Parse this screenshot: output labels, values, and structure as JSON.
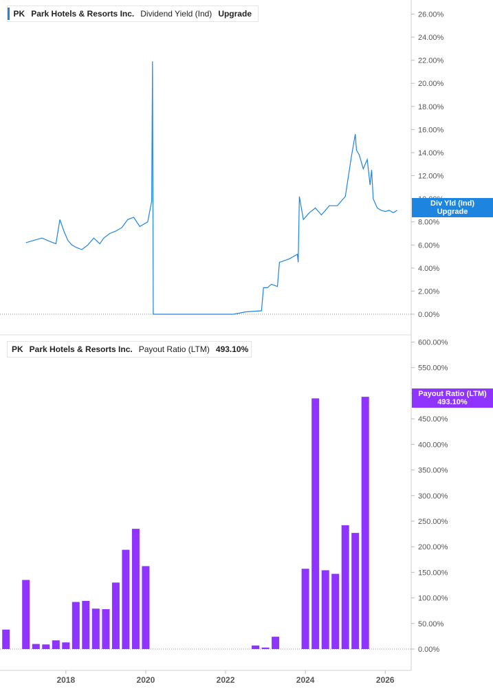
{
  "colors": {
    "yield": "#1d84e0",
    "payout": "#8f33ff",
    "grid": "#d9d9d9",
    "text": "#555555"
  },
  "top_legend": {
    "ticker": "PK",
    "company": "Park Hotels & Resorts Inc.",
    "metric": "Dividend Yield (Ind)",
    "value": "Upgrade"
  },
  "top_tag": {
    "line1": "Div Yld (Ind)",
    "line2": "Upgrade"
  },
  "bottom_legend": {
    "ticker": "PK",
    "company": "Park Hotels & Resorts Inc.",
    "metric": "Payout Ratio (LTM)",
    "value": "493.10%"
  },
  "bottom_tag": {
    "line1": "Payout Ratio (LTM)",
    "line2": "493.10%"
  },
  "chart_data": [
    {
      "type": "line",
      "series_label": "Dividend Yield (Ind)",
      "y_unit": "%",
      "ylim": [
        0,
        27
      ],
      "yticks": [
        "0.00%",
        "2.00%",
        "4.00%",
        "6.00%",
        "8.00%",
        "10.00%",
        "12.00%",
        "14.00%",
        "16.00%",
        "18.00%",
        "20.00%",
        "22.00%",
        "24.00%",
        "26.00%"
      ],
      "x": [
        2017.0,
        2017.2,
        2017.4,
        2017.6,
        2017.75,
        2017.85,
        2017.95,
        2018.05,
        2018.15,
        2018.25,
        2018.4,
        2018.55,
        2018.7,
        2018.85,
        2018.95,
        2019.1,
        2019.25,
        2019.4,
        2019.55,
        2019.7,
        2019.85,
        2019.95,
        2020.05,
        2020.15,
        2020.17,
        2020.19,
        2020.2,
        2021.0,
        2022.0,
        2022.2,
        2022.5,
        2022.9,
        2022.95,
        2023.05,
        2023.15,
        2023.3,
        2023.35,
        2023.6,
        2023.8,
        2023.82,
        2023.85,
        2023.95,
        2024.1,
        2024.25,
        2024.4,
        2024.6,
        2024.8,
        2025.0,
        2025.15,
        2025.25,
        2025.28,
        2025.35,
        2025.45,
        2025.55,
        2025.62,
        2025.66,
        2025.7,
        2025.8,
        2025.9,
        2026.0,
        2026.1,
        2026.2,
        2026.3
      ],
      "y": [
        6.2,
        6.4,
        6.6,
        6.3,
        6.1,
        8.2,
        7.2,
        6.4,
        6.0,
        5.8,
        5.6,
        6.0,
        6.6,
        6.1,
        6.6,
        7.0,
        7.2,
        7.5,
        8.2,
        8.4,
        7.6,
        7.8,
        8.0,
        9.8,
        21.9,
        0,
        0,
        0,
        0,
        0,
        0.2,
        0.3,
        2.3,
        2.3,
        2.6,
        2.4,
        4.5,
        4.8,
        5.2,
        4.5,
        10.2,
        8.2,
        8.8,
        9.2,
        8.6,
        9.4,
        9.4,
        10.2,
        13.6,
        15.6,
        14.2,
        13.8,
        12.6,
        13.4,
        11.2,
        12.5,
        10.0,
        9.2,
        9.0,
        8.9,
        9.0,
        8.8,
        9.0
      ]
    },
    {
      "type": "bar",
      "series_label": "Payout Ratio (LTM)",
      "y_unit": "%",
      "ylim": [
        0,
        600
      ],
      "yticks": [
        "0.00%",
        "50.00%",
        "100.00%",
        "150.00%",
        "200.00%",
        "250.00%",
        "300.00%",
        "350.00%",
        "400.00%",
        "450.00%",
        "500.00%",
        "550.00%",
        "600.00%"
      ],
      "x_ticks": [
        "2018",
        "2020",
        "2022",
        "2024",
        "2026"
      ],
      "xlim": [
        2016.35,
        2026.65
      ],
      "x": [
        2016.5,
        2017.0,
        2017.25,
        2017.5,
        2017.75,
        2018.0,
        2018.25,
        2018.5,
        2018.75,
        2019.0,
        2019.25,
        2019.5,
        2019.75,
        2020.0,
        2022.75,
        2023.0,
        2023.25,
        2024.0,
        2024.25,
        2024.5,
        2024.75,
        2025.0,
        2025.25,
        2025.5
      ],
      "values": [
        38,
        135,
        10,
        9,
        17,
        13,
        92,
        94,
        79,
        78,
        130,
        194,
        235,
        162,
        7,
        3,
        24,
        157,
        490,
        154,
        147,
        242,
        227,
        493.1
      ]
    }
  ]
}
